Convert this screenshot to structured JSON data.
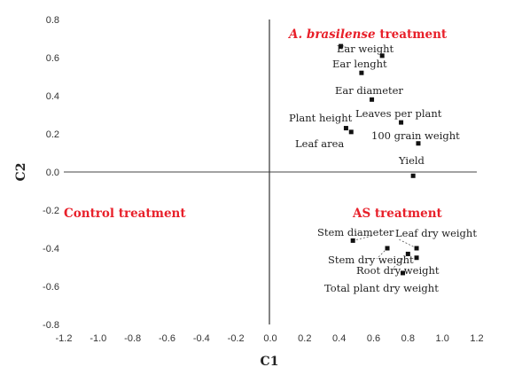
{
  "chart_data": {
    "type": "scatter",
    "xlabel": "C1",
    "ylabel": "C2",
    "xlim": [
      -1.2,
      1.2
    ],
    "ylim": [
      -0.8,
      0.8
    ],
    "x_ticks": [
      "-1.2",
      "-1.0",
      "-0.8",
      "-0.6",
      "-0.4",
      "-0.2",
      "0.0",
      "0.2",
      "0.4",
      "0.6",
      "0.8",
      "1.0",
      "1.2"
    ],
    "y_ticks": [
      "0.8",
      "0.6",
      "0.4",
      "0.2",
      "0.0",
      "-0.2",
      "-0.4",
      "-0.6",
      "-0.8"
    ],
    "grid": false,
    "points": [
      {
        "label": "Ear weight",
        "x": 0.41,
        "y": 0.66
      },
      {
        "label": "Ear lenght",
        "x": 0.65,
        "y": 0.61
      },
      {
        "label": "Ear diameter",
        "x": 0.53,
        "y": 0.52
      },
      {
        "label": "Leaves per plant",
        "x": 0.59,
        "y": 0.38
      },
      {
        "label": "Plant height",
        "x": 0.44,
        "y": 0.23
      },
      {
        "label": "Leaf area",
        "x": 0.47,
        "y": 0.21
      },
      {
        "label": "100 grain weight",
        "x": 0.76,
        "y": 0.26
      },
      {
        "label": "Yield",
        "x": 0.86,
        "y": 0.15
      },
      {
        "label": "",
        "x": 0.83,
        "y": -0.02
      },
      {
        "label": "Stem diameter",
        "x": 0.48,
        "y": -0.36
      },
      {
        "label": "Stem dry weight",
        "x": 0.68,
        "y": -0.4
      },
      {
        "label": "Leaf dry weight",
        "x": 0.85,
        "y": -0.4
      },
      {
        "label": "Root dry weight",
        "x": 0.8,
        "y": -0.43
      },
      {
        "label": "",
        "x": 0.85,
        "y": -0.45
      },
      {
        "label": "Total plant dry weight",
        "x": 0.77,
        "y": -0.53
      }
    ],
    "group_labels": [
      {
        "italic": "A. brasilense",
        "rest": " treatment",
        "color": "#e8202a"
      },
      {
        "italic": "",
        "rest": "Control treatment",
        "color": "#e8202a"
      },
      {
        "italic": "",
        "rest": "AS treatment",
        "color": "#e8202a"
      }
    ]
  }
}
